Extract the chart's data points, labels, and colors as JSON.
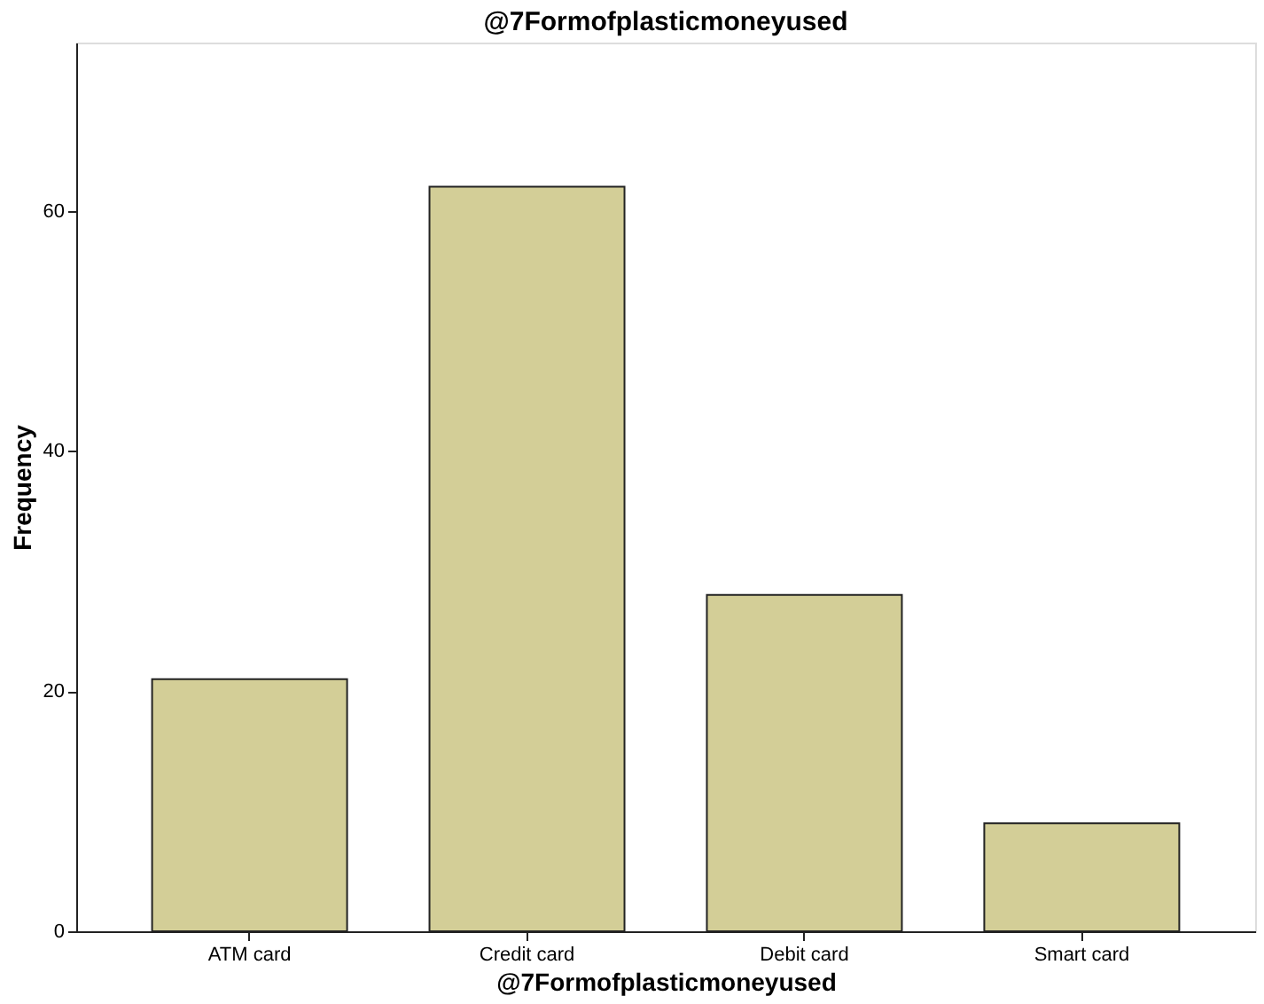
{
  "chart_data": {
    "type": "bar",
    "title": "@7Formofplasticmoneyused",
    "xlabel": "@7Formofplasticmoneyused",
    "ylabel": "Frequency",
    "categories": [
      "ATM card",
      "Credit card",
      "Debit card",
      "Smart card"
    ],
    "values": [
      21,
      62,
      28,
      9
    ],
    "color": "#d3ce97",
    "ylim": [
      0,
      74
    ],
    "yticks": [
      0,
      20,
      40,
      60
    ],
    "grid": false
  }
}
